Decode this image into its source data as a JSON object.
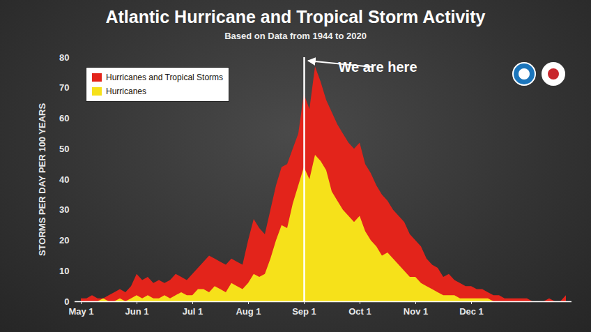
{
  "chart_data": {
    "type": "area",
    "title": "Atlantic Hurricane and Tropical Storm Activity",
    "subtitle": "Based on Data from 1944 to 2020",
    "y_label": "STORMS PER DAY PER 100 YEARS",
    "categories": [
      "May 1",
      null,
      null,
      null,
      null,
      null,
      null,
      null,
      null,
      null,
      "Jun 1",
      null,
      null,
      null,
      null,
      null,
      null,
      null,
      null,
      null,
      "Jul 1",
      null,
      null,
      null,
      null,
      null,
      null,
      null,
      null,
      null,
      "Aug 1",
      null,
      null,
      null,
      null,
      null,
      null,
      null,
      null,
      null,
      "Sep 1",
      null,
      null,
      null,
      null,
      null,
      null,
      null,
      null,
      null,
      "Oct 1",
      null,
      null,
      null,
      null,
      null,
      null,
      null,
      null,
      null,
      "Nov 1",
      null,
      null,
      null,
      null,
      null,
      null,
      null,
      null,
      null,
      "Dec 1",
      null,
      null,
      null,
      null,
      null,
      null,
      null,
      null,
      null,
      null,
      null,
      null,
      null,
      null,
      null,
      null,
      null
    ],
    "series": [
      {
        "name": "Hurricanes and Tropical Storms",
        "color": "#e3241b",
        "values": [
          1,
          1,
          2,
          1,
          1,
          2,
          3,
          4,
          3,
          5,
          9,
          7,
          8,
          6,
          7,
          6,
          7,
          9,
          8,
          7,
          9,
          11,
          13,
          15,
          14,
          13,
          12,
          14,
          13,
          12,
          20,
          27,
          24,
          22,
          30,
          38,
          44,
          45,
          50,
          55,
          68,
          63,
          77,
          72,
          66,
          62,
          58,
          55,
          52,
          50,
          52,
          45,
          42,
          38,
          35,
          33,
          30,
          28,
          26,
          22,
          20,
          18,
          14,
          12,
          11,
          8,
          9,
          7,
          6,
          5,
          5,
          4,
          4,
          3,
          2,
          2,
          1,
          1,
          1,
          1,
          1,
          0,
          0,
          0,
          1,
          0,
          0,
          2
        ]
      },
      {
        "name": "Hurricanes",
        "color": "#f6e11a",
        "values": [
          0,
          0,
          0,
          0,
          1,
          0,
          0,
          1,
          0,
          1,
          2,
          1,
          2,
          1,
          1,
          2,
          1,
          2,
          3,
          2,
          2,
          4,
          4,
          3,
          5,
          4,
          3,
          6,
          5,
          4,
          6,
          9,
          8,
          9,
          14,
          20,
          25,
          24,
          32,
          38,
          44,
          40,
          48,
          46,
          43,
          36,
          33,
          30,
          28,
          26,
          28,
          23,
          20,
          18,
          15,
          16,
          14,
          12,
          10,
          8,
          8,
          6,
          5,
          4,
          3,
          2,
          2,
          2,
          1,
          1,
          1,
          1,
          1,
          1,
          0,
          0,
          0,
          0,
          0,
          0,
          0,
          0,
          0,
          0,
          0,
          0,
          0,
          0
        ]
      }
    ],
    "ylim": [
      0,
      80
    ],
    "yticks": [
      0,
      10,
      20,
      30,
      40,
      50,
      60,
      70,
      80
    ],
    "grid": false,
    "stacked": false,
    "legend": "top-left",
    "annotation": {
      "text": "We are here",
      "category": "Sep 1"
    }
  }
}
